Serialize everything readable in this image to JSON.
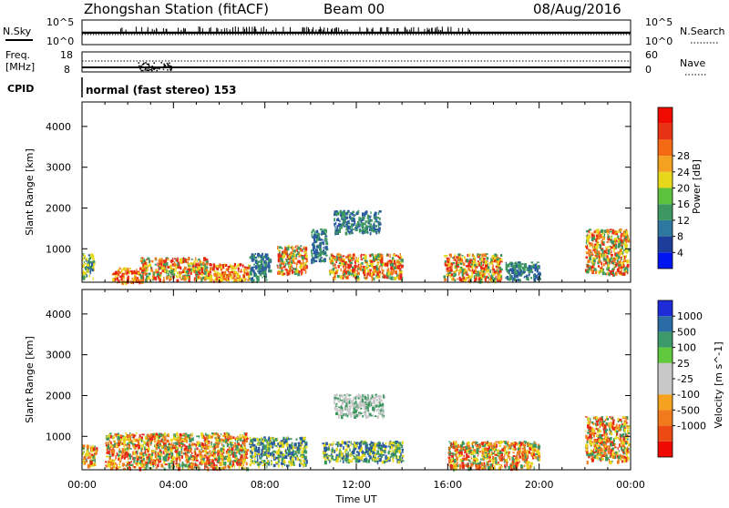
{
  "header": {
    "title": "Zhongshan Station (fitACF)",
    "beam": "Beam 00",
    "date": "08/Aug/2016"
  },
  "panels": {
    "nsky": {
      "label": "N.Sky",
      "ticks": [
        "10^5",
        "10^0"
      ],
      "right_ticks": [
        "10^5",
        "10^0"
      ],
      "right_label": "N.Search"
    },
    "freq": {
      "label_line1": "Freq.",
      "label_line2": "[MHz]",
      "ticks": [
        "18",
        "8"
      ],
      "right_ticks": [
        "60",
        "0"
      ],
      "right_label": "Nave"
    },
    "cpid": {
      "label": "CPID",
      "text": "normal (fast stereo) 153"
    }
  },
  "colors": {
    "power_scale": [
      "#0016f0",
      "#1e3c9a",
      "#2e78a0",
      "#3c9860",
      "#5cc240",
      "#e8d81c",
      "#f4a020",
      "#f46a14",
      "#e83214",
      "#f00a00"
    ],
    "velocity_scale": [
      "#ee0a00",
      "#ec4a12",
      "#f07a1c",
      "#f4a220",
      "#c8c8c8",
      "#c8c8c8",
      "#60c83c",
      "#3c9a6a",
      "#2c6ca6",
      "#1e2cd8"
    ],
    "data_red": "#e82814",
    "data_orange": "#f07a1c",
    "data_yellow": "#e8d81c",
    "data_green": "#3c9860",
    "data_blue": "#2a5aa0",
    "data_gray": "#c8c8c8"
  },
  "chart_data": [
    {
      "type": "heatmap",
      "quantity": "Power",
      "ylabel": "Slant Range [km]",
      "yticks": [
        1000,
        2000,
        3000,
        4000
      ],
      "ylim": [
        180,
        4600
      ],
      "xlim": [
        0,
        24
      ],
      "colorbar": {
        "label": "Power [dB]",
        "ticks": [
          "4",
          "8",
          "12",
          "16",
          "20",
          "24",
          "28"
        ],
        "range": [
          0,
          32
        ]
      },
      "echo_regions": [
        {
          "t0": 0.0,
          "t1": 0.5,
          "r0": 300,
          "r1": 900,
          "level": "green"
        },
        {
          "t0": 1.3,
          "t1": 2.7,
          "r0": 200,
          "r1": 550,
          "level": "red"
        },
        {
          "t0": 2.5,
          "t1": 5.5,
          "r0": 250,
          "r1": 800,
          "level": "orange"
        },
        {
          "t0": 5.5,
          "t1": 7.3,
          "r0": 220,
          "r1": 650,
          "level": "red"
        },
        {
          "t0": 7.3,
          "t1": 8.2,
          "r0": 250,
          "r1": 900,
          "level": "blue"
        },
        {
          "t0": 8.5,
          "t1": 9.8,
          "r0": 400,
          "r1": 1100,
          "level": "orange"
        },
        {
          "t0": 10.0,
          "t1": 10.7,
          "r0": 700,
          "r1": 1500,
          "level": "blue"
        },
        {
          "t0": 11.0,
          "t1": 13.0,
          "r0": 1400,
          "r1": 1950,
          "level": "blue"
        },
        {
          "t0": 10.8,
          "t1": 14.0,
          "r0": 300,
          "r1": 900,
          "level": "orange"
        },
        {
          "t0": 15.8,
          "t1": 18.3,
          "r0": 220,
          "r1": 900,
          "level": "orange"
        },
        {
          "t0": 18.5,
          "t1": 20.0,
          "r0": 250,
          "r1": 700,
          "level": "blue"
        },
        {
          "t0": 22.0,
          "t1": 23.9,
          "r0": 400,
          "r1": 1500,
          "level": "orange"
        }
      ]
    },
    {
      "type": "heatmap",
      "quantity": "Velocity",
      "ylabel": "Slant Range [km]",
      "yticks": [
        1000,
        2000,
        3000,
        4000
      ],
      "ylim": [
        180,
        4600
      ],
      "xlim": [
        0,
        24
      ],
      "colorbar": {
        "label": "Velocity [m s^-1]",
        "ticks": [
          "1000",
          "500",
          "100",
          "25",
          "-25",
          "-100",
          "-500",
          "-1000"
        ]
      },
      "echo_regions": [
        {
          "t0": 0.0,
          "t1": 0.6,
          "r0": 300,
          "r1": 800,
          "level": "orange"
        },
        {
          "t0": 1.0,
          "t1": 7.2,
          "r0": 230,
          "r1": 1100,
          "level": "orange"
        },
        {
          "t0": 7.3,
          "t1": 9.8,
          "r0": 300,
          "r1": 1000,
          "level": "green"
        },
        {
          "t0": 11.0,
          "t1": 13.2,
          "r0": 1500,
          "r1": 2050,
          "level": "gray"
        },
        {
          "t0": 10.5,
          "t1": 14.0,
          "r0": 400,
          "r1": 900,
          "level": "green"
        },
        {
          "t0": 16.0,
          "t1": 20.0,
          "r0": 230,
          "r1": 900,
          "level": "orange"
        },
        {
          "t0": 22.0,
          "t1": 23.9,
          "r0": 400,
          "r1": 1500,
          "level": "orange"
        }
      ]
    }
  ],
  "xaxis": {
    "ticks": [
      "00:00",
      "04:00",
      "08:00",
      "12:00",
      "16:00",
      "20:00",
      "00:00"
    ],
    "label": "Time UT",
    "range_hours": [
      0,
      24
    ]
  }
}
